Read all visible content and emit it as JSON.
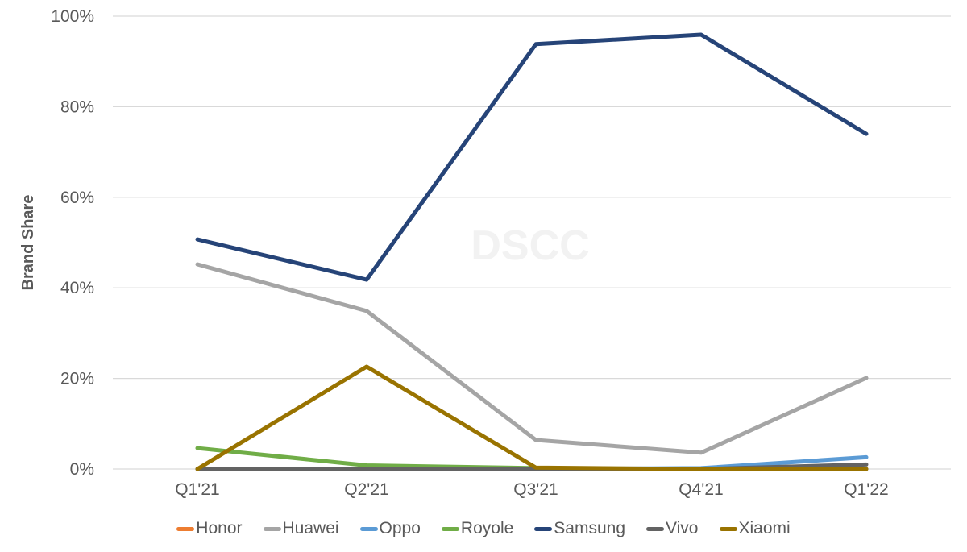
{
  "chart_data": {
    "type": "line",
    "title": "",
    "xlabel": "",
    "ylabel": "Brand Share",
    "ylim": [
      0,
      100
    ],
    "yticks": [
      "0%",
      "20%",
      "40%",
      "60%",
      "80%",
      "100%"
    ],
    "grid": true,
    "legend_position": "bottom",
    "watermark": "DSCC",
    "categories": [
      "Q1'21",
      "Q2'21",
      "Q3'21",
      "Q4'21",
      "Q1'22"
    ],
    "series": [
      {
        "name": "Honor",
        "color": "#ED7D31",
        "values": [
          0,
          0,
          0,
          0,
          0
        ]
      },
      {
        "name": "Huawei",
        "color": "#A5A5A5",
        "values": [
          45.2,
          34.9,
          6.4,
          3.6,
          20.1
        ]
      },
      {
        "name": "Oppo",
        "color": "#5B9BD5",
        "values": [
          0,
          0,
          0,
          0.2,
          2.6
        ]
      },
      {
        "name": "Royole",
        "color": "#70AD47",
        "values": [
          4.6,
          0.8,
          0.2,
          0,
          0
        ]
      },
      {
        "name": "Samsung",
        "color": "#264478",
        "values": [
          50.7,
          41.8,
          93.8,
          95.9,
          74.0
        ]
      },
      {
        "name": "Vivo",
        "color": "#636363",
        "values": [
          0,
          0,
          0,
          0,
          1.0
        ]
      },
      {
        "name": "Xiaomi",
        "color": "#997300",
        "values": [
          0,
          22.6,
          0.3,
          0,
          0
        ]
      }
    ]
  }
}
